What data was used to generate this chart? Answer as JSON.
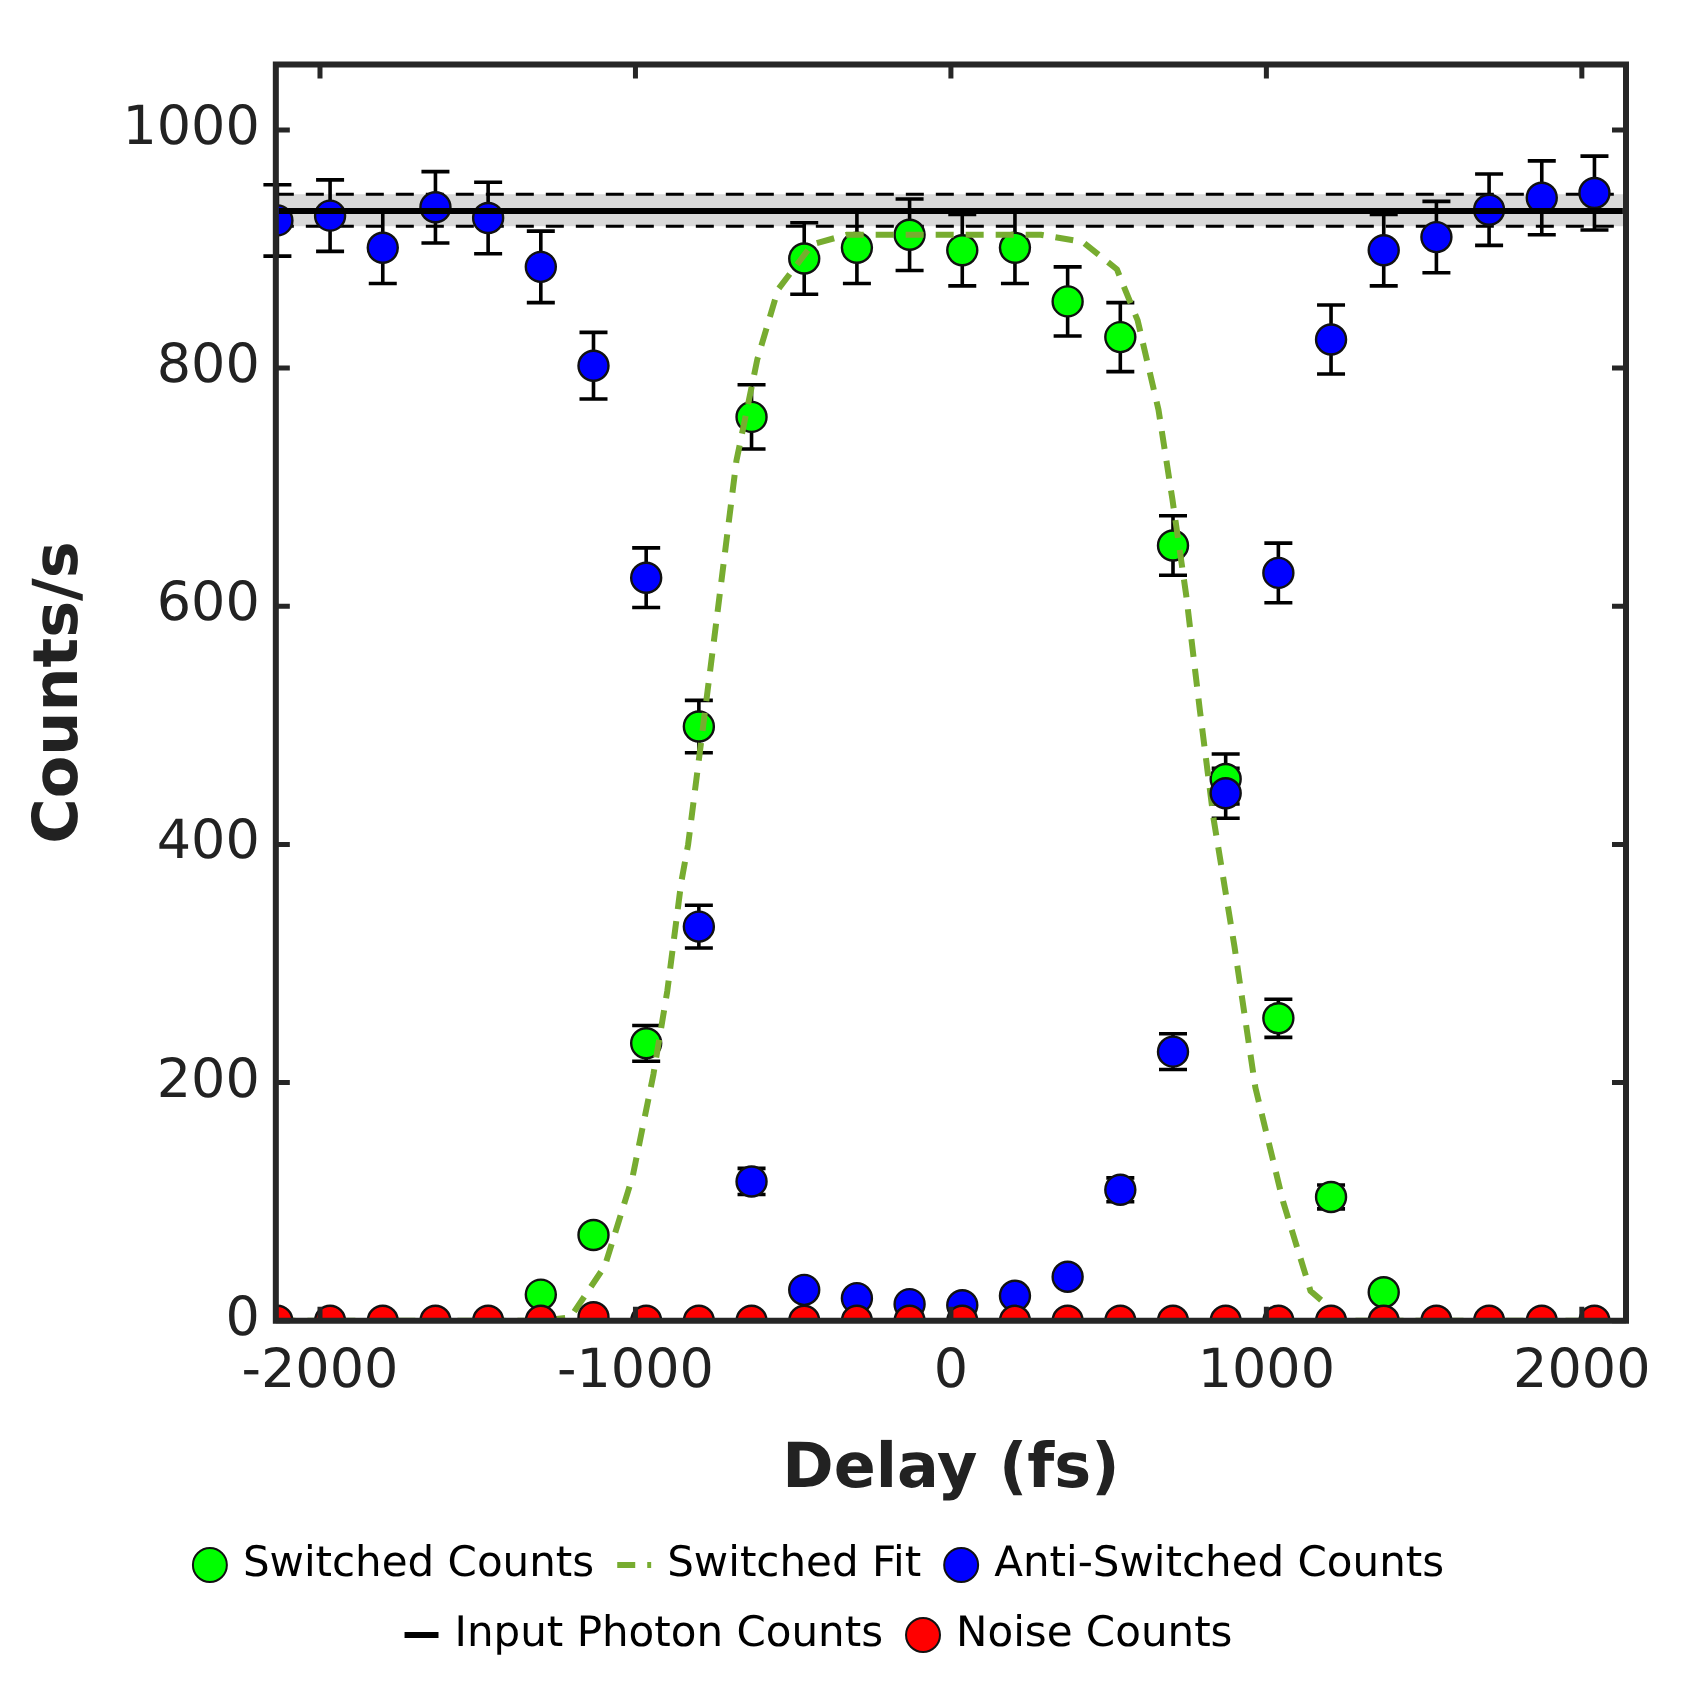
{
  "chart_data": {
    "type": "scatter",
    "xlabel": "Delay (fs)",
    "ylabel": "Counts/s",
    "x": [
      -2135,
      -1968,
      -1801,
      -1634,
      -1467,
      -1300,
      -1133,
      -966,
      -799,
      -632,
      -465,
      -298,
      -131,
      36,
      203,
      370,
      537,
      704,
      871,
      1038,
      1205,
      1372,
      1539,
      1706,
      1873,
      2040
    ],
    "series": [
      {
        "name": "Switched Counts",
        "color": "#00ff00",
        "values": [
          null,
          null,
          null,
          null,
          null,
          22,
          72,
          233,
          499,
          759,
          892,
          901,
          912,
          899,
          901,
          856,
          826,
          651,
          455,
          254,
          104,
          24,
          null,
          null,
          null,
          null
        ],
        "errors": [
          null,
          null,
          null,
          null,
          null,
          null,
          null,
          15,
          22,
          27,
          30,
          30,
          30,
          30,
          30,
          29,
          29,
          25,
          21,
          16,
          10,
          null,
          null,
          null,
          null,
          null
        ]
      },
      {
        "name": "Switched Fit",
        "type": "line",
        "color": "#77ac30",
        "line_style": "dashed",
        "marker": "none",
        "x": [
          -2135,
          -1300,
          -1206,
          -1097,
          -1009,
          -943,
          -899,
          -855,
          -833,
          -746,
          -680,
          -614,
          -548,
          -439,
          -329,
          285,
          417,
          526,
          592,
          658,
          702,
          746,
          789,
          833,
          899,
          965,
          1053,
          1140,
          1250,
          2040
        ],
        "values": [
          0,
          0,
          3,
          46,
          121,
          207,
          277,
          368,
          400,
          582,
          722,
          807,
          866,
          904,
          912,
          912,
          906,
          883,
          840,
          765,
          690,
          609,
          513,
          421,
          314,
          196,
          100,
          25,
          0,
          0
        ]
      },
      {
        "name": "Anti-Switched Counts",
        "color": "#0000ff",
        "values": [
          924,
          928,
          901,
          935,
          926,
          885,
          802,
          624,
          331,
          117,
          26,
          19,
          14,
          13,
          21,
          37,
          110,
          226,
          443,
          628,
          824,
          899,
          910,
          933,
          943,
          947
        ],
        "errors": [
          30,
          30,
          30,
          30,
          30,
          30,
          28,
          25,
          18,
          11,
          null,
          null,
          null,
          null,
          null,
          null,
          10,
          15,
          21,
          25,
          29,
          30,
          30,
          30,
          31,
          31
        ]
      },
      {
        "name": "Input Photon Counts",
        "type": "line",
        "color": "#000000",
        "marker": "none",
        "x": [
          -2130,
          2130
        ],
        "values": [
          932,
          932
        ]
      },
      {
        "name": "Noise Counts",
        "color": "#ff0000",
        "values": [
          0,
          0,
          0,
          0,
          0,
          0,
          3,
          0,
          0,
          0,
          0,
          0,
          0,
          0,
          0,
          0,
          0,
          0,
          0,
          0,
          0,
          0,
          0,
          0,
          0,
          0
        ]
      }
    ],
    "xlim": [
      -2140,
      2140
    ],
    "ylim": [
      0,
      1055
    ],
    "xticks": [
      -2000,
      -1000,
      0,
      1000,
      2000
    ],
    "yticks": [
      0,
      200,
      400,
      600,
      800,
      1000
    ],
    "bands": [
      {
        "axis": "y",
        "from": 919,
        "to": 946,
        "color": "#d9d9d9"
      }
    ],
    "ref_lines": [
      {
        "axis": "y",
        "value": 919,
        "color": "#000000",
        "line_style": "dashed"
      },
      {
        "axis": "y",
        "value": 946,
        "color": "#000000",
        "line_style": "dashed"
      }
    ],
    "grid": false,
    "legend": "bottom",
    "marker": "circle"
  }
}
